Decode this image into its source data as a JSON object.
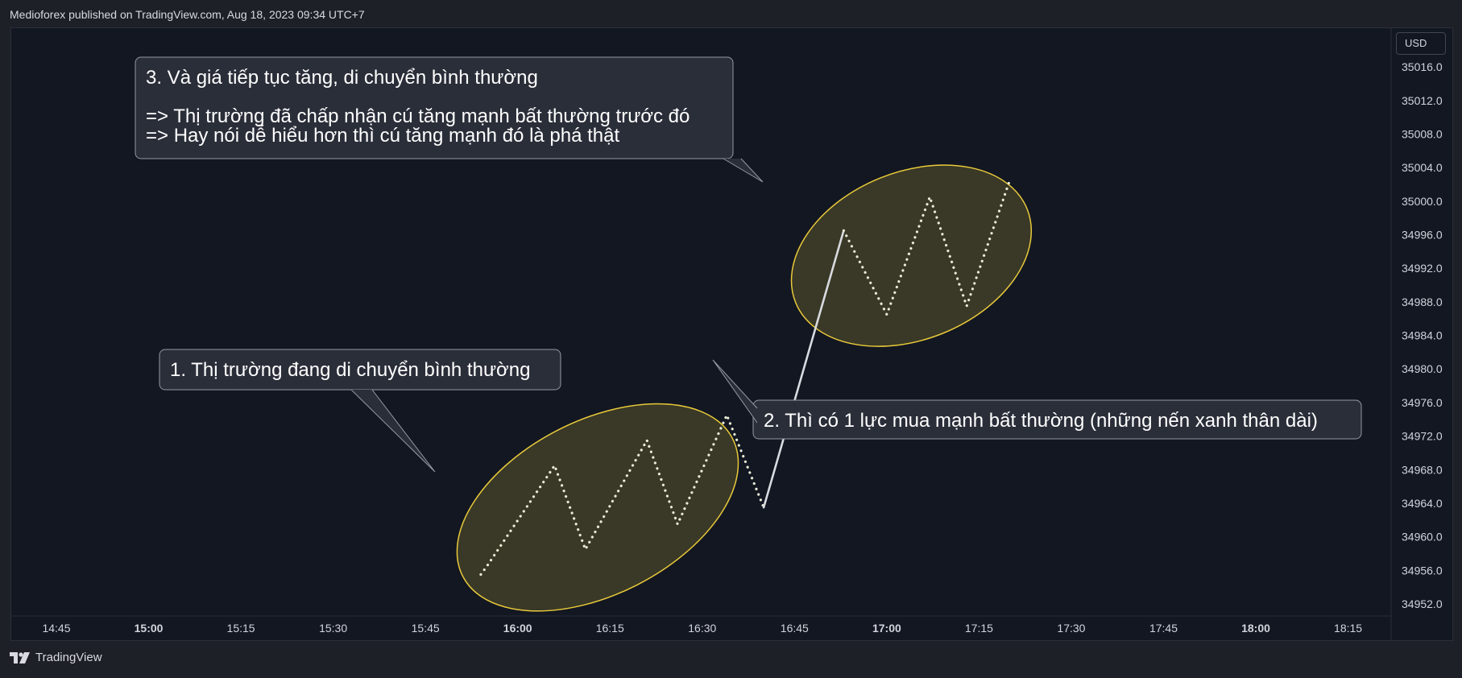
{
  "header": {
    "attribution": "Medioforex published on TradingView.com, Aug 18, 2023 09:34 UTC+7"
  },
  "currency_label": "USD",
  "footer": {
    "brand": "TradingView"
  },
  "colors": {
    "background": "#131722",
    "ellipse_stroke": "#e8c93a",
    "ellipse_fill": "rgba(200,180,60,0.22)",
    "dots": "#e9ecd6",
    "line": "#d8dbe0",
    "callout_bg": "#2a2e39",
    "callout_border": "#9598a1"
  },
  "chart_data": {
    "type": "line",
    "title": "",
    "x_axis": {
      "ticks": [
        {
          "label": "14:45",
          "major": false
        },
        {
          "label": "15:00",
          "major": true
        },
        {
          "label": "15:15",
          "major": false
        },
        {
          "label": "15:30",
          "major": false
        },
        {
          "label": "15:45",
          "major": false
        },
        {
          "label": "16:00",
          "major": true
        },
        {
          "label": "16:15",
          "major": false
        },
        {
          "label": "16:30",
          "major": false
        },
        {
          "label": "16:45",
          "major": false
        },
        {
          "label": "17:00",
          "major": true
        },
        {
          "label": "17:15",
          "major": false
        },
        {
          "label": "17:30",
          "major": false
        },
        {
          "label": "17:45",
          "major": false
        },
        {
          "label": "18:00",
          "major": true
        },
        {
          "label": "18:15",
          "major": false
        }
      ],
      "range_minutes_from_1445": [
        -5,
        230
      ]
    },
    "y_axis": {
      "ticks": [
        35016.0,
        35012.0,
        35008.0,
        35004.0,
        35000.0,
        34996.0,
        34992.0,
        34988.0,
        34984.0,
        34980.0,
        34976.0,
        34972.0,
        34968.0,
        34964.0,
        34960.0,
        34956.0,
        34952.0
      ],
      "range": [
        34950.5,
        35018.5
      ],
      "position": "right"
    },
    "series": [
      {
        "style": "dotted",
        "points": [
          [
            "15:54",
            34955.5
          ],
          [
            "15:55",
            34956.5
          ],
          [
            "16:06",
            34968.5
          ],
          [
            "16:11",
            34958.5
          ],
          [
            "16:21",
            34971.5
          ],
          [
            "16:26",
            34961.5
          ],
          [
            "16:34",
            34974.5
          ],
          [
            "16:40",
            34963.5
          ]
        ]
      },
      {
        "style": "solid",
        "points": [
          [
            "16:40",
            34963.5
          ],
          [
            "16:53",
            34996.5
          ]
        ]
      },
      {
        "style": "dotted",
        "points": [
          [
            "16:53",
            34996.5
          ],
          [
            "17:00",
            34986.5
          ],
          [
            "17:07",
            35000.5
          ],
          [
            "17:13",
            34987.5
          ],
          [
            "17:20",
            35002.5
          ]
        ]
      }
    ],
    "ellipses": [
      {
        "center": [
          "16:13",
          34963.5
        ],
        "rotation_deg": -27
      },
      {
        "center": [
          "17:04",
          34993.5
        ],
        "rotation_deg": -22
      }
    ],
    "annotations": [
      {
        "id": "note1",
        "lines": [
          "1. Thị trường đang di chuyển bình thường"
        ]
      },
      {
        "id": "note2",
        "lines": [
          "2. Thì có 1 lực mua mạnh bất thường (những nến xanh thân dài)"
        ]
      },
      {
        "id": "note3",
        "lines": [
          "3. Và giá tiếp tục tăng, di chuyển bình thường",
          "",
          "=> Thị trường đã chấp nhận cú tăng mạnh bất thường trước đó",
          "=> Hay nói dễ hiểu hơn thì cú tăng mạnh đó là phá thật"
        ]
      }
    ]
  }
}
